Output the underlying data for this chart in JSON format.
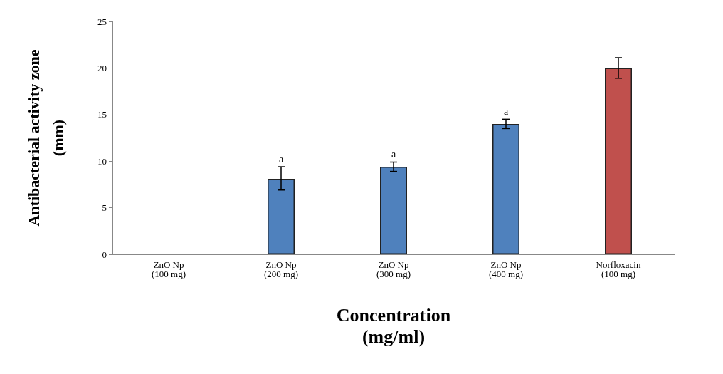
{
  "chart_data": {
    "type": "bar",
    "xlabel": "Concentration\n(mg/ml)",
    "ylabel": "Antibacterial activity zone\n(mm)",
    "categories": [
      "ZnO Np\n(100 mg)",
      "ZnO Np\n(200 mg)",
      "ZnO Np\n(300 mg)",
      "ZnO Np\n(400 mg)",
      "Norfloxacin\n(100 mg)"
    ],
    "values": [
      0,
      8.1,
      9.4,
      14,
      20
    ],
    "colors": [
      "#4f81bd",
      "#4f81bd",
      "#4f81bd",
      "#4f81bd",
      "#c0504d"
    ],
    "errors": [
      null,
      [
        6.9,
        9.4
      ],
      [
        8.9,
        9.9
      ],
      [
        13.5,
        14.5
      ],
      [
        18.9,
        21.1
      ]
    ],
    "ylim": [
      0,
      25
    ],
    "yticks": [
      0,
      5,
      10,
      15,
      20,
      25
    ],
    "grid": false,
    "annotations": [
      {
        "text": "a",
        "x": "ZnO Np\n(200 mg)",
        "y": 9.4
      },
      {
        "text": "a",
        "x": "ZnO Np\n(300 mg)",
        "y": 9.9
      },
      {
        "text": "a",
        "x": "ZnO Np\n(400 mg)",
        "y": 14.5
      }
    ]
  }
}
